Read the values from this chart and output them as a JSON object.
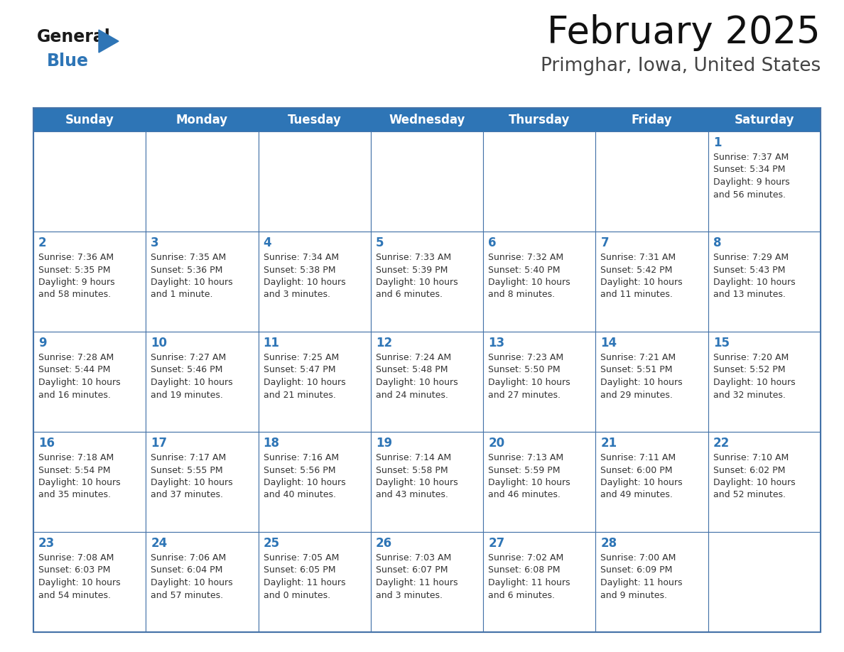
{
  "title": "February 2025",
  "subtitle": "Primghar, Iowa, United States",
  "header_bg": "#2E75B6",
  "header_text_color": "#FFFFFF",
  "cell_border_color": "#4472A8",
  "day_number_color": "#2E75B6",
  "cell_text_color": "#333333",
  "background_color": "#FFFFFF",
  "days_of_week": [
    "Sunday",
    "Monday",
    "Tuesday",
    "Wednesday",
    "Thursday",
    "Friday",
    "Saturday"
  ],
  "weeks": [
    [
      {
        "day": null,
        "info": null
      },
      {
        "day": null,
        "info": null
      },
      {
        "day": null,
        "info": null
      },
      {
        "day": null,
        "info": null
      },
      {
        "day": null,
        "info": null
      },
      {
        "day": null,
        "info": null
      },
      {
        "day": 1,
        "info": "Sunrise: 7:37 AM\nSunset: 5:34 PM\nDaylight: 9 hours\nand 56 minutes."
      }
    ],
    [
      {
        "day": 2,
        "info": "Sunrise: 7:36 AM\nSunset: 5:35 PM\nDaylight: 9 hours\nand 58 minutes."
      },
      {
        "day": 3,
        "info": "Sunrise: 7:35 AM\nSunset: 5:36 PM\nDaylight: 10 hours\nand 1 minute."
      },
      {
        "day": 4,
        "info": "Sunrise: 7:34 AM\nSunset: 5:38 PM\nDaylight: 10 hours\nand 3 minutes."
      },
      {
        "day": 5,
        "info": "Sunrise: 7:33 AM\nSunset: 5:39 PM\nDaylight: 10 hours\nand 6 minutes."
      },
      {
        "day": 6,
        "info": "Sunrise: 7:32 AM\nSunset: 5:40 PM\nDaylight: 10 hours\nand 8 minutes."
      },
      {
        "day": 7,
        "info": "Sunrise: 7:31 AM\nSunset: 5:42 PM\nDaylight: 10 hours\nand 11 minutes."
      },
      {
        "day": 8,
        "info": "Sunrise: 7:29 AM\nSunset: 5:43 PM\nDaylight: 10 hours\nand 13 minutes."
      }
    ],
    [
      {
        "day": 9,
        "info": "Sunrise: 7:28 AM\nSunset: 5:44 PM\nDaylight: 10 hours\nand 16 minutes."
      },
      {
        "day": 10,
        "info": "Sunrise: 7:27 AM\nSunset: 5:46 PM\nDaylight: 10 hours\nand 19 minutes."
      },
      {
        "day": 11,
        "info": "Sunrise: 7:25 AM\nSunset: 5:47 PM\nDaylight: 10 hours\nand 21 minutes."
      },
      {
        "day": 12,
        "info": "Sunrise: 7:24 AM\nSunset: 5:48 PM\nDaylight: 10 hours\nand 24 minutes."
      },
      {
        "day": 13,
        "info": "Sunrise: 7:23 AM\nSunset: 5:50 PM\nDaylight: 10 hours\nand 27 minutes."
      },
      {
        "day": 14,
        "info": "Sunrise: 7:21 AM\nSunset: 5:51 PM\nDaylight: 10 hours\nand 29 minutes."
      },
      {
        "day": 15,
        "info": "Sunrise: 7:20 AM\nSunset: 5:52 PM\nDaylight: 10 hours\nand 32 minutes."
      }
    ],
    [
      {
        "day": 16,
        "info": "Sunrise: 7:18 AM\nSunset: 5:54 PM\nDaylight: 10 hours\nand 35 minutes."
      },
      {
        "day": 17,
        "info": "Sunrise: 7:17 AM\nSunset: 5:55 PM\nDaylight: 10 hours\nand 37 minutes."
      },
      {
        "day": 18,
        "info": "Sunrise: 7:16 AM\nSunset: 5:56 PM\nDaylight: 10 hours\nand 40 minutes."
      },
      {
        "day": 19,
        "info": "Sunrise: 7:14 AM\nSunset: 5:58 PM\nDaylight: 10 hours\nand 43 minutes."
      },
      {
        "day": 20,
        "info": "Sunrise: 7:13 AM\nSunset: 5:59 PM\nDaylight: 10 hours\nand 46 minutes."
      },
      {
        "day": 21,
        "info": "Sunrise: 7:11 AM\nSunset: 6:00 PM\nDaylight: 10 hours\nand 49 minutes."
      },
      {
        "day": 22,
        "info": "Sunrise: 7:10 AM\nSunset: 6:02 PM\nDaylight: 10 hours\nand 52 minutes."
      }
    ],
    [
      {
        "day": 23,
        "info": "Sunrise: 7:08 AM\nSunset: 6:03 PM\nDaylight: 10 hours\nand 54 minutes."
      },
      {
        "day": 24,
        "info": "Sunrise: 7:06 AM\nSunset: 6:04 PM\nDaylight: 10 hours\nand 57 minutes."
      },
      {
        "day": 25,
        "info": "Sunrise: 7:05 AM\nSunset: 6:05 PM\nDaylight: 11 hours\nand 0 minutes."
      },
      {
        "day": 26,
        "info": "Sunrise: 7:03 AM\nSunset: 6:07 PM\nDaylight: 11 hours\nand 3 minutes."
      },
      {
        "day": 27,
        "info": "Sunrise: 7:02 AM\nSunset: 6:08 PM\nDaylight: 11 hours\nand 6 minutes."
      },
      {
        "day": 28,
        "info": "Sunrise: 7:00 AM\nSunset: 6:09 PM\nDaylight: 11 hours\nand 9 minutes."
      },
      {
        "day": null,
        "info": null
      }
    ]
  ],
  "logo_general_color": "#1a1a1a",
  "logo_blue_color": "#2E75B6",
  "title_fontsize": 38,
  "subtitle_fontsize": 19,
  "header_fontsize": 12,
  "day_number_fontsize": 12,
  "cell_info_fontsize": 9,
  "logo_fontsize": 17
}
